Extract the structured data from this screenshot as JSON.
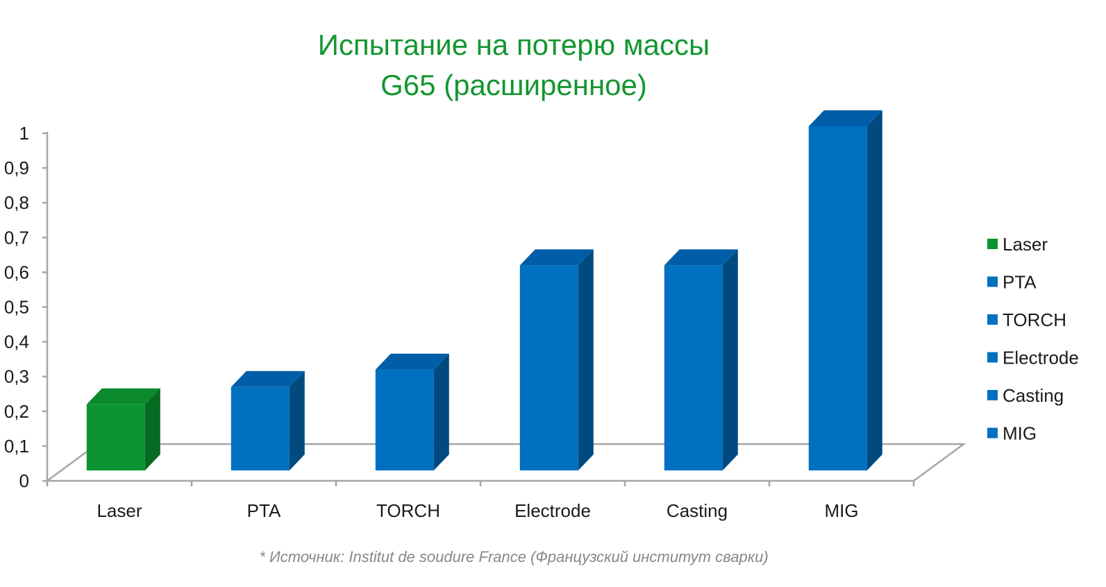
{
  "chart_data": {
    "type": "bar",
    "title_lines": [
      "Испытание на потерю массы",
      "G65 (расширенное)"
    ],
    "categories": [
      "Laser",
      "PTA",
      "TORCH",
      "Electrode",
      "Casting",
      "MIG"
    ],
    "values": [
      0.2,
      0.25,
      0.3,
      0.6,
      0.6,
      1.0
    ],
    "colors": [
      "#0b9431",
      "#0070c0",
      "#0070c0",
      "#0070c0",
      "#0070c0",
      "#0070c0"
    ],
    "side_colors": [
      "#066b22",
      "#004a80",
      "#004a80",
      "#004a80",
      "#004a80",
      "#004a80"
    ],
    "top_colors": [
      "#0a8a2c",
      "#005ea8",
      "#005ea8",
      "#005ea8",
      "#005ea8",
      "#005ea8"
    ],
    "ylim": [
      0,
      1
    ],
    "yticks": [
      "0",
      "0,1",
      "0,2",
      "0,3",
      "0,4",
      "0,5",
      "0,6",
      "0,7",
      "0,8",
      "0,9",
      "1"
    ],
    "legend": {
      "position": "right",
      "entries": [
        "Laser",
        "PTA",
        "TORCH",
        "Electrode",
        "Casting",
        "MIG"
      ]
    },
    "style": "3d-column",
    "source_note": "* Источник: Institut de soudure France (Французский институт сварки)"
  }
}
